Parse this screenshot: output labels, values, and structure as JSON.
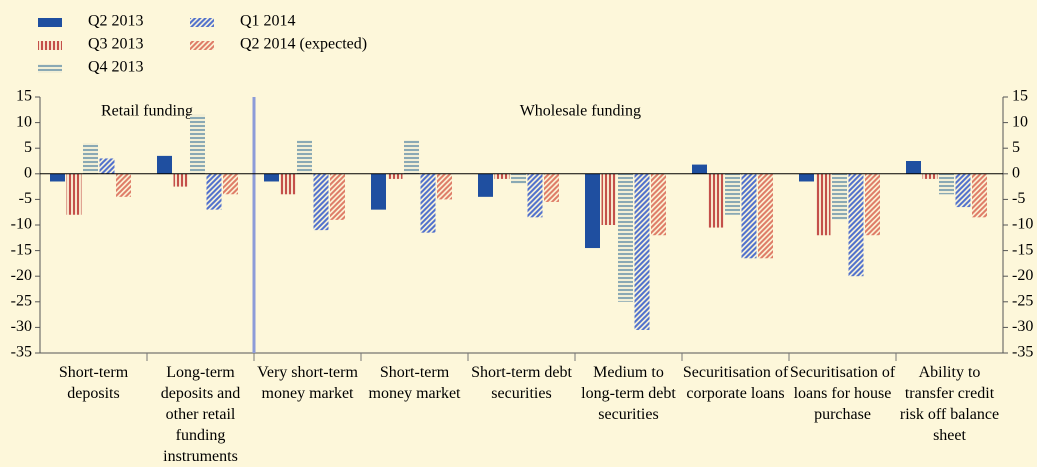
{
  "chart_data": {
    "type": "bar",
    "categories": [
      "Short-term deposits",
      "Long-term deposits and other retail funding instruments",
      "Very short-term money market",
      "Short-term money market",
      "Short-term debt securities",
      "Medium to long-term debt securities",
      "Securitisation of corporate loans",
      "Securitisation of loans for house purchase",
      "Ability to transfer credit risk off balance sheet"
    ],
    "annotations": [
      "Retail funding",
      "Wholesale funding"
    ],
    "series": [
      {
        "name": "Q2 2013",
        "color": "#1f4fa0",
        "hatch": "solid",
        "values": [
          -1.5,
          3.5,
          -1.5,
          -7,
          -4.5,
          -14.5,
          1.8,
          -1.5,
          2.5
        ]
      },
      {
        "name": "Q3 2013",
        "color": "#c4504a",
        "hatch": "vertical",
        "values": [
          -8,
          -2.5,
          -4,
          -1,
          -1,
          -10,
          -10.5,
          -12,
          -1
        ]
      },
      {
        "name": "Q4 2013",
        "color": "#8aa9b4",
        "hatch": "horizontal",
        "values": [
          6,
          11.5,
          6.5,
          6.5,
          -2,
          -25,
          -8,
          -9,
          -4
        ]
      },
      {
        "name": "Q1 2014",
        "color": "#4f6fcc",
        "hatch": "diagonal",
        "values": [
          3,
          -7,
          -11,
          -11.5,
          -8.5,
          -30.5,
          -16.5,
          -20,
          -6.5
        ]
      },
      {
        "name": "Q2 2014 (expected)",
        "color": "#de7b66",
        "hatch": "diagonal",
        "values": [
          -4.5,
          -4,
          -9,
          -5,
          -5.5,
          -12,
          -16.5,
          -12,
          -8.5
        ]
      }
    ],
    "ylim": [
      -35,
      15
    ],
    "yticks": [
      15,
      10,
      5,
      0,
      -5,
      -10,
      -15,
      -20,
      -25,
      -30,
      -35
    ]
  }
}
